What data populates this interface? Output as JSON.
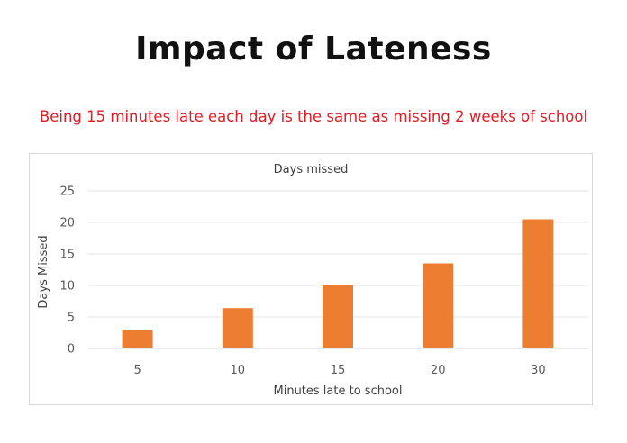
{
  "title": "Impact of Lateness",
  "subtitle": "Being 15 minutes late each day is the same as missing 2 weeks of school",
  "colors": {
    "bar": "#ed7d31",
    "subtitle": "#e31b23",
    "grid": "#e6e6e6"
  },
  "chart_data": {
    "type": "bar",
    "title": "Days missed",
    "xlabel": "Minutes late to school",
    "ylabel": "Days Missed",
    "categories": [
      "5",
      "10",
      "15",
      "20",
      "30"
    ],
    "values": [
      3,
      6.4,
      10,
      13.5,
      20.5
    ],
    "ylim": [
      0,
      25
    ],
    "yticks": [
      "0",
      "5",
      "10",
      "15",
      "20",
      "25"
    ],
    "grid": true,
    "legend": "none"
  }
}
